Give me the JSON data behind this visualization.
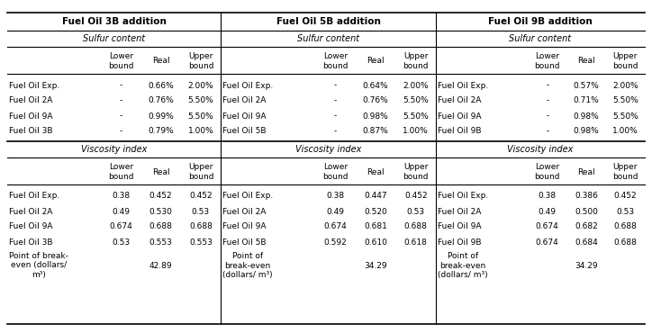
{
  "top_headers": [
    "Fuel Oil 3B addition",
    "Fuel Oil 5B addition",
    "Fuel Oil 9B addition"
  ],
  "section_label_sulfur": "Sulfur content",
  "section_label_visc": "Viscosity index",
  "col_sub": [
    "Lower\nbound",
    "Real",
    "Upper\nbound"
  ],
  "sulfur_data": [
    [
      "Fuel Oil Exp.",
      "-",
      "0.66%",
      "2.00%",
      "Fuel Oil Exp.",
      "-",
      "0.64%",
      "2.00%",
      "Fuel Oil Exp.",
      "-",
      "0.57%",
      "2.00%"
    ],
    [
      "Fuel Oil 2A",
      "-",
      "0.76%",
      "5.50%",
      "Fuel Oil 2A",
      "-",
      "0.76%",
      "5.50%",
      "Fuel Oil 2A",
      "-",
      "0.71%",
      "5.50%"
    ],
    [
      "Fuel Oil 9A",
      "-",
      "0.99%",
      "5.50%",
      "Fuel Oil 9A",
      "-",
      "0.98%",
      "5.50%",
      "Fuel Oil 9A",
      "-",
      "0.98%",
      "5.50%"
    ],
    [
      "Fuel Oil 3B",
      "-",
      "0.79%",
      "1.00%",
      "Fuel Oil 5B",
      "-",
      "0.87%",
      "1.00%",
      "Fuel Oil 9B",
      "-",
      "0.98%",
      "1.00%"
    ]
  ],
  "visc_data": [
    [
      "Fuel Oil Exp.",
      "0.38",
      "0.452",
      "0.452",
      "Fuel Oil Exp.",
      "0.38",
      "0.447",
      "0.452",
      "Fuel Oil Exp.",
      "0.38",
      "0.386",
      "0.452"
    ],
    [
      "Fuel Oil 2A",
      "0.49",
      "0.530",
      "0.53",
      "Fuel Oil 2A",
      "0.49",
      "0.520",
      "0.53",
      "Fuel Oil 2A",
      "0.49",
      "0.500",
      "0.53"
    ],
    [
      "Fuel Oil 9A",
      "0.674",
      "0.688",
      "0.688",
      "Fuel Oil 9A",
      "0.674",
      "0.681",
      "0.688",
      "Fuel Oil 9A",
      "0.674",
      "0.682",
      "0.688"
    ],
    [
      "Fuel Oil 3B",
      "0.53",
      "0.553",
      "0.553",
      "Fuel Oil 5B",
      "0.592",
      "0.610",
      "0.618",
      "Fuel Oil 9B",
      "0.674",
      "0.684",
      "0.688"
    ]
  ],
  "bev_labels": [
    "Point of break-\neven (dollars/\nm³)",
    "Point of\nbreak-even\n(dollars/ m³)",
    "Point of\nbreak-even\n(dollars/ m³)"
  ],
  "bev_vals": [
    "42.89",
    "34.29",
    "34.29"
  ],
  "fs_header": 7.5,
  "fs_main": 6.5,
  "fs_italic": 7.0
}
